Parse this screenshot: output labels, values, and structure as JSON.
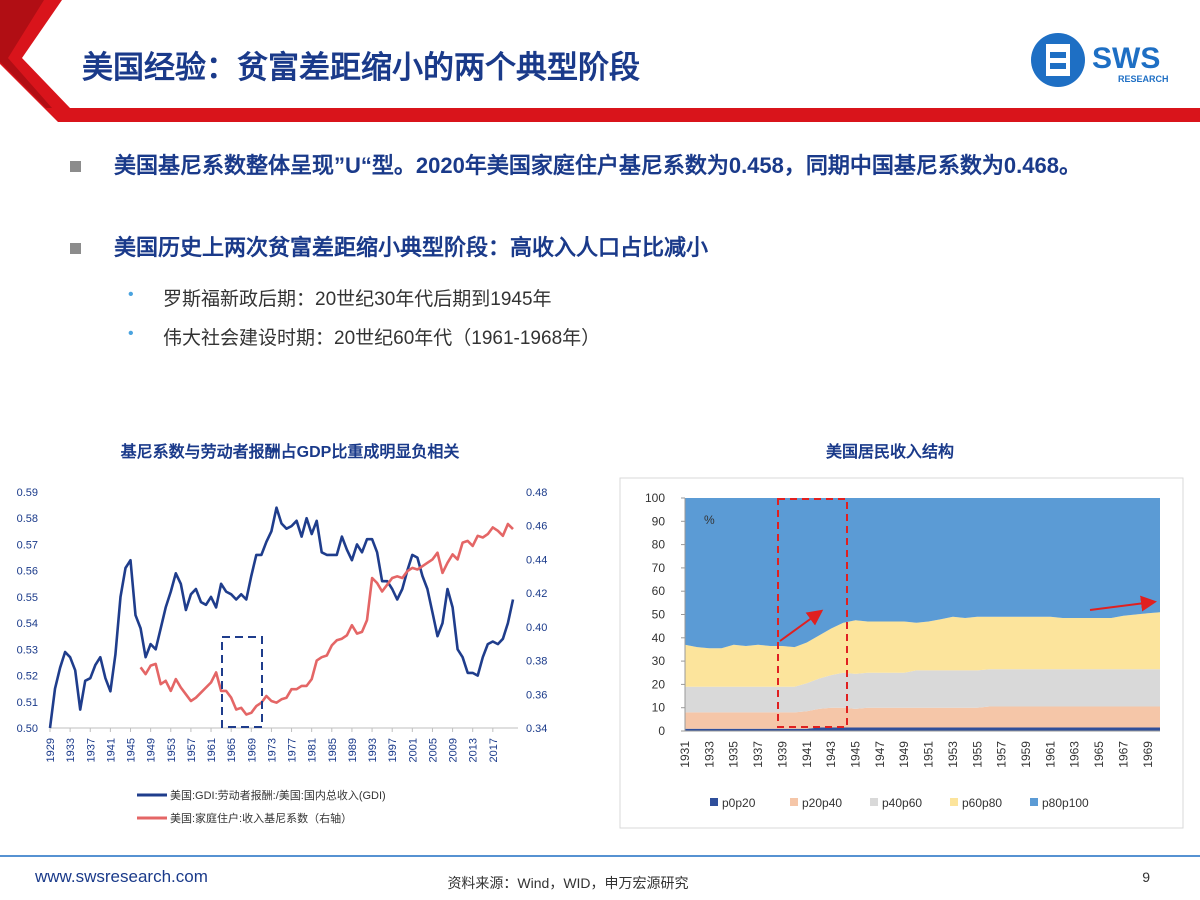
{
  "header": {
    "title": "美国经验：贫富差距缩小的两个典型阶段",
    "logo": "SWS",
    "logo_sub": "RESEARCH"
  },
  "bullets": [
    "美国基尼系数整体呈现”U“型。2020年美国家庭住户基尼系数为0.458，同期中国基尼系数为0.468。",
    "美国历史上两次贫富差距缩小典型阶段：高收入人口占比减小"
  ],
  "sub_bullets": [
    "罗斯福新政后期：20世纪30年代后期到1945年",
    "伟大社会建设时期：20世纪60年代（1961-1968年）"
  ],
  "footer": {
    "url": "www.swsresearch.com",
    "source": "资料来源：Wind，WID，申万宏源研究",
    "page": "9"
  },
  "chart_data": [
    {
      "type": "line",
      "title": "基尼系数与劳动者报酬占GDP比重成明显负相关",
      "x": [
        1929,
        1930,
        1931,
        1932,
        1933,
        1934,
        1935,
        1936,
        1937,
        1938,
        1939,
        1940,
        1941,
        1942,
        1943,
        1944,
        1945,
        1946,
        1947,
        1948,
        1949,
        1950,
        1951,
        1952,
        1953,
        1954,
        1955,
        1956,
        1957,
        1958,
        1959,
        1960,
        1961,
        1962,
        1963,
        1964,
        1965,
        1966,
        1967,
        1968,
        1969,
        1970,
        1971,
        1972,
        1973,
        1974,
        1975,
        1976,
        1977,
        1978,
        1979,
        1980,
        1981,
        1982,
        1983,
        1984,
        1985,
        1986,
        1987,
        1988,
        1989,
        1990,
        1991,
        1992,
        1993,
        1994,
        1995,
        1996,
        1997,
        1998,
        1999,
        2000,
        2001,
        2002,
        2003,
        2004,
        2005,
        2006,
        2007,
        2008,
        2009,
        2010,
        2011,
        2012,
        2013,
        2014,
        2015,
        2016,
        2017,
        2018,
        2019,
        2020,
        2021
      ],
      "xlim": [
        1929,
        2022
      ],
      "xticks": [
        1929,
        1933,
        1937,
        1941,
        1945,
        1949,
        1953,
        1957,
        1961,
        1965,
        1969,
        1973,
        1977,
        1981,
        1985,
        1989,
        1993,
        1997,
        2001,
        2005,
        2009,
        2013,
        2017
      ],
      "ylim": [
        0.5,
        0.59
      ],
      "yticks": [
        {
          "value": 0.5,
          "label": "0.50"
        },
        0.51,
        0.52,
        0.53,
        0.54,
        0.55,
        0.56,
        0.57,
        0.58,
        0.59
      ],
      "y2lim": [
        0.34,
        0.48
      ],
      "y2ticks": [
        0.34,
        0.36,
        0.38,
        {
          "value": 0.4,
          "label": "0.40"
        },
        0.42,
        0.44,
        0.46,
        0.48
      ],
      "legend": "bottom",
      "series": [
        {
          "name": "美国:GDI:劳动者报酬:/美国:国内总收入(GDI)",
          "color": "#1f3d8c",
          "values": [
            0.5,
            0.515,
            0.523,
            0.529,
            0.527,
            0.522,
            0.507,
            0.518,
            0.519,
            0.524,
            0.527,
            0.519,
            0.514,
            0.528,
            0.55,
            0.561,
            0.564,
            0.543,
            0.538,
            0.527,
            0.532,
            0.53,
            0.538,
            0.546,
            0.552,
            0.559,
            0.555,
            0.545,
            0.551,
            0.553,
            0.548,
            0.547,
            0.55,
            0.546,
            0.555,
            0.552,
            0.551,
            0.549,
            0.551,
            0.549,
            0.558,
            0.566,
            0.566,
            0.571,
            0.575,
            0.584,
            0.578,
            0.576,
            0.577,
            0.579,
            0.573,
            0.58,
            0.574,
            0.579,
            0.567,
            0.566,
            0.566,
            0.566,
            0.573,
            0.568,
            0.564,
            0.57,
            0.567,
            0.572,
            0.572,
            0.567,
            0.556,
            0.556,
            0.553,
            0.549,
            0.553,
            0.56,
            0.566,
            0.565,
            0.558,
            0.553,
            0.544,
            0.535,
            0.54,
            0.553,
            0.546,
            0.53,
            0.527,
            0.521,
            0.521,
            0.52,
            0.527,
            0.532,
            0.533,
            0.532,
            0.534,
            0.54,
            0.549
          ]
        },
        {
          "name": "美国:家庭住户:收入基尼系数（右轴）",
          "color": "#e46666",
          "axis": "y2",
          "values": [
            null,
            null,
            null,
            null,
            null,
            null,
            null,
            null,
            null,
            null,
            null,
            null,
            null,
            null,
            null,
            null,
            null,
            null,
            0.376,
            0.372,
            0.377,
            0.378,
            0.366,
            0.368,
            0.362,
            0.369,
            0.364,
            0.36,
            0.356,
            0.358,
            0.361,
            0.364,
            0.367,
            0.373,
            0.362,
            0.362,
            0.358,
            0.351,
            0.352,
            0.348,
            0.349,
            0.353,
            0.355,
            0.359,
            0.356,
            0.355,
            0.357,
            0.358,
            0.363,
            0.363,
            0.365,
            0.365,
            0.369,
            0.38,
            0.382,
            0.383,
            0.389,
            0.392,
            0.393,
            0.395,
            0.401,
            0.396,
            0.397,
            0.404,
            0.429,
            0.426,
            0.421,
            0.425,
            0.429,
            0.43,
            0.429,
            0.433,
            0.435,
            0.434,
            0.436,
            0.438,
            0.44,
            0.444,
            0.432,
            0.438,
            0.443,
            0.44,
            0.45,
            0.451,
            0.448,
            0.454,
            0.453,
            0.455,
            0.459,
            0.457,
            0.454,
            0.461,
            0.458
          ]
        }
      ]
    },
    {
      "type": "area",
      "stacked": true,
      "title": "美国居民收入结构",
      "annotation": "%",
      "categories": [
        1931,
        null,
        1933,
        null,
        1935,
        null,
        1937,
        null,
        1939,
        null,
        1941,
        null,
        1943,
        null,
        1945,
        null,
        1947,
        null,
        1949,
        null,
        1951,
        null,
        1953,
        null,
        1955,
        null,
        1957,
        null,
        1959,
        null,
        1961,
        null,
        1963,
        null,
        1965,
        null,
        1967,
        null,
        1969,
        null
      ],
      "ylim": [
        0,
        100
      ],
      "yticks": [
        0,
        10,
        20,
        30,
        40,
        50,
        60,
        70,
        80,
        90,
        100
      ],
      "legend": "bottom",
      "series": [
        {
          "name": "p0p20",
          "color": "#2f4f9b",
          "values": [
            1,
            1,
            1,
            1,
            1,
            1,
            1,
            1,
            1,
            1,
            1,
            1.5,
            1.5,
            1.5,
            1.5,
            1.5,
            1.5,
            1.5,
            1.5,
            1.5,
            1.5,
            1.5,
            1.5,
            1.5,
            1.5,
            1.5,
            1.5,
            1.5,
            1.5,
            1.5,
            1.5,
            1.5,
            1.5,
            1.5,
            1.5,
            1.5,
            1.5,
            1.5,
            1.5,
            1.5
          ]
        },
        {
          "name": "p20p40",
          "color": "#f5c6a8",
          "values": [
            7,
            7,
            7,
            7,
            7,
            7,
            7,
            7,
            7,
            7,
            7.5,
            8,
            8.5,
            8.5,
            8,
            8.5,
            8.5,
            8.5,
            8.5,
            8.5,
            8.5,
            8.5,
            8.5,
            8.5,
            8.5,
            9,
            9,
            9,
            9,
            9,
            9,
            9,
            9,
            9,
            9,
            9,
            9,
            9,
            9,
            9
          ]
        },
        {
          "name": "p40p60",
          "color": "#d9d9d9",
          "values": [
            11,
            11,
            11,
            11,
            11,
            11,
            11,
            11,
            11,
            11,
            12,
            13,
            14,
            15,
            15,
            15,
            15,
            15,
            15,
            16,
            16,
            16,
            16,
            16,
            16,
            16,
            16,
            16,
            16,
            16,
            16,
            16,
            16,
            16,
            16,
            16,
            16,
            16,
            16,
            16
          ]
        },
        {
          "name": "p60p80",
          "color": "#fce49c",
          "values": [
            18,
            17,
            16.5,
            16.5,
            18,
            17.5,
            18,
            17.5,
            17.5,
            17,
            17.5,
            18.5,
            20,
            21.5,
            23,
            22,
            22,
            22,
            22,
            20.5,
            21,
            22,
            23,
            22.5,
            23,
            22.5,
            22.5,
            22.5,
            22.5,
            22.5,
            22.5,
            22,
            22,
            22,
            22,
            22,
            23,
            23.5,
            24,
            24.5
          ]
        },
        {
          "name": "p80p100",
          "color": "#5b9bd5",
          "values": [
            63,
            64,
            64.5,
            64.5,
            63,
            63.5,
            63,
            63.5,
            63.5,
            64,
            62,
            59,
            56,
            53.5,
            52.5,
            53,
            53,
            53,
            53,
            53.5,
            53,
            52,
            51,
            51.5,
            51,
            51,
            51,
            51,
            51,
            51,
            51,
            51.5,
            51.5,
            51.5,
            51.5,
            51.5,
            50.5,
            50,
            49.5,
            49
          ]
        }
      ]
    }
  ]
}
